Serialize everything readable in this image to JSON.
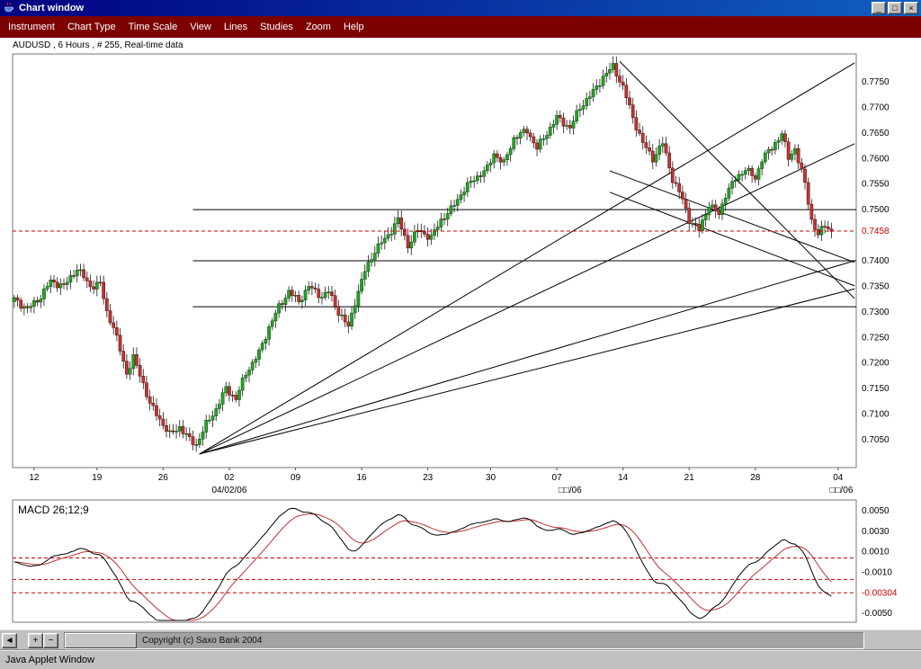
{
  "window": {
    "title": "Chart window",
    "controls": {
      "minimize": "_",
      "maximize": "□",
      "close": "×"
    }
  },
  "menu": {
    "items": [
      "Instrument",
      "Chart Type",
      "Time Scale",
      "View",
      "Lines",
      "Studies",
      "Zoom",
      "Help"
    ]
  },
  "chart_header": "AUDUSD , 6 Hours , # 255, Real-time data",
  "chart_data": {
    "type": "candlestick",
    "instrument": "AUDUSD",
    "interval": "6 Hours",
    "bars": 255,
    "colors": {
      "up": "#27a327",
      "up_border": "#0c4a0c",
      "down": "#c23434",
      "down_border": "#4f0d0d",
      "wick": "#1a1a1a",
      "line": "#000000",
      "current": "#cc0000",
      "macd": "#000000",
      "signal": "#c03030"
    },
    "price_axis": {
      "ticks": [
        0.775,
        0.77,
        0.765,
        0.76,
        0.755,
        0.75,
        0.74,
        0.735,
        0.73,
        0.725,
        0.72,
        0.715,
        0.71,
        0.705
      ],
      "current_price": 0.7458,
      "current_label": "0.7458"
    },
    "x_axis": {
      "labels": [
        {
          "text": "12",
          "i": 6
        },
        {
          "text": "19",
          "i": 25
        },
        {
          "text": "26",
          "i": 45
        },
        {
          "text": "02",
          "i": 65
        },
        {
          "text": "09",
          "i": 85
        },
        {
          "text": "16",
          "i": 105
        },
        {
          "text": "23",
          "i": 125
        },
        {
          "text": "30",
          "i": 144
        },
        {
          "text": "07",
          "i": 164
        },
        {
          "text": "14",
          "i": 184
        },
        {
          "text": "21",
          "i": 204
        },
        {
          "text": "28",
          "i": 224
        },
        {
          "text": "04",
          "i": 249
        }
      ],
      "date_labels": [
        {
          "text": "04/02/06",
          "i": 65
        },
        {
          "text": "□□/06",
          "i": 168
        },
        {
          "text": "□□/06",
          "i": 250
        }
      ]
    },
    "close_keypoints": [
      [
        0,
        0.7325
      ],
      [
        4,
        0.7305
      ],
      [
        8,
        0.733
      ],
      [
        11,
        0.736
      ],
      [
        15,
        0.735
      ],
      [
        19,
        0.7385
      ],
      [
        23,
        0.735
      ],
      [
        26,
        0.7355
      ],
      [
        28,
        0.73
      ],
      [
        30,
        0.727
      ],
      [
        34,
        0.718
      ],
      [
        36,
        0.721
      ],
      [
        39,
        0.716
      ],
      [
        41,
        0.712
      ],
      [
        44,
        0.709
      ],
      [
        47,
        0.706
      ],
      [
        50,
        0.7075
      ],
      [
        53,
        0.705
      ],
      [
        55,
        0.704
      ],
      [
        58,
        0.708
      ],
      [
        61,
        0.711
      ],
      [
        64,
        0.715
      ],
      [
        67,
        0.713
      ],
      [
        70,
        0.718
      ],
      [
        74,
        0.722
      ],
      [
        77,
        0.727
      ],
      [
        80,
        0.731
      ],
      [
        83,
        0.734
      ],
      [
        86,
        0.732
      ],
      [
        89,
        0.735
      ],
      [
        93,
        0.733
      ],
      [
        95,
        0.734
      ],
      [
        98,
        0.73
      ],
      [
        101,
        0.727
      ],
      [
        103,
        0.732
      ],
      [
        106,
        0.738
      ],
      [
        109,
        0.742
      ],
      [
        113,
        0.745
      ],
      [
        116,
        0.748
      ],
      [
        119,
        0.743
      ],
      [
        122,
        0.746
      ],
      [
        126,
        0.7445
      ],
      [
        129,
        0.748
      ],
      [
        132,
        0.75
      ],
      [
        136,
        0.754
      ],
      [
        139,
        0.756
      ],
      [
        143,
        0.758
      ],
      [
        145,
        0.761
      ],
      [
        148,
        0.759
      ],
      [
        151,
        0.764
      ],
      [
        155,
        0.7655
      ],
      [
        158,
        0.762
      ],
      [
        161,
        0.765
      ],
      [
        164,
        0.768
      ],
      [
        168,
        0.766
      ],
      [
        171,
        0.77
      ],
      [
        175,
        0.773
      ],
      [
        178,
        0.776
      ],
      [
        181,
        0.778
      ],
      [
        184,
        0.774
      ],
      [
        187,
        0.768
      ],
      [
        190,
        0.763
      ],
      [
        193,
        0.76
      ],
      [
        196,
        0.763
      ],
      [
        199,
        0.756
      ],
      [
        202,
        0.752
      ],
      [
        204,
        0.748
      ],
      [
        207,
        0.746
      ],
      [
        210,
        0.751
      ],
      [
        213,
        0.749
      ],
      [
        215,
        0.753
      ],
      [
        218,
        0.756
      ],
      [
        221,
        0.758
      ],
      [
        224,
        0.756
      ],
      [
        226,
        0.76
      ],
      [
        229,
        0.762
      ],
      [
        232,
        0.765
      ],
      [
        234,
        0.76
      ],
      [
        236,
        0.762
      ],
      [
        239,
        0.755
      ],
      [
        241,
        0.748
      ],
      [
        243,
        0.745
      ],
      [
        245,
        0.747
      ],
      [
        247,
        0.7458
      ]
    ],
    "support_resistance": [
      {
        "price": 0.75,
        "from_bar": 54,
        "to_bar": 254
      },
      {
        "price": 0.74,
        "from_bar": 54,
        "to_bar": 254
      },
      {
        "price": 0.731,
        "from_bar": 54,
        "to_bar": 254
      }
    ],
    "trendlines": [
      {
        "from": [
          56,
          0.7022
        ],
        "to": [
          254,
          0.7787
        ]
      },
      {
        "from": [
          56,
          0.7022
        ],
        "to": [
          254,
          0.7629
        ]
      },
      {
        "from": [
          56,
          0.7022
        ],
        "to": [
          254,
          0.74
        ]
      },
      {
        "from": [
          56,
          0.7022
        ],
        "to": [
          254,
          0.7345
        ]
      },
      {
        "from": [
          183,
          0.779
        ],
        "to": [
          254,
          0.7326
        ]
      },
      {
        "from": [
          180,
          0.7576
        ],
        "to": [
          254,
          0.7397
        ]
      },
      {
        "from": [
          180,
          0.7534
        ],
        "to": [
          254,
          0.7351
        ]
      }
    ],
    "macd": {
      "label": "MACD 26;12;9",
      "fast": 12,
      "slow": 26,
      "signal_period": 9,
      "ticks": [
        0.005,
        0.003,
        0.001,
        -0.001,
        -0.005
      ],
      "current_value": -0.00304,
      "current_label": "-0.00304",
      "dashed_levels": [
        0.0004,
        -0.0017,
        -0.003
      ]
    }
  },
  "footer": {
    "pan_left": "◄",
    "zoom_in": "+",
    "zoom_out": "−",
    "copyright": "Copyright (c) Saxo Bank 2004"
  },
  "status_bar": "Java Applet Window"
}
